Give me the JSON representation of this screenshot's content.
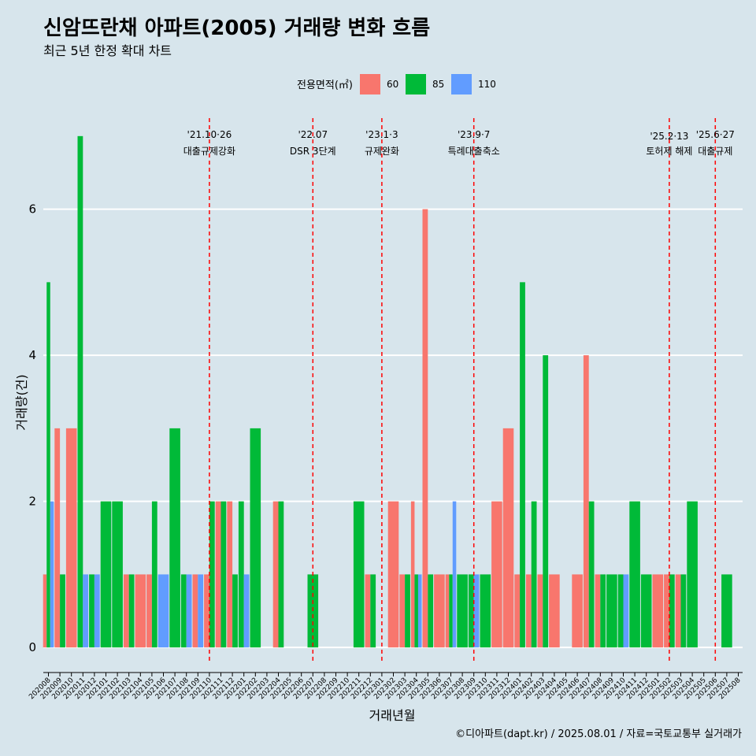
{
  "chart_data": {
    "type": "bar",
    "title": "신암뜨란채 아파트(2005) 거래량 변화 흐름",
    "subtitle": "최근 5년 한정 확대 차트",
    "xlabel": "거래년월",
    "ylabel": "거래량(건)",
    "caption": "©디아파트(dapt.kr) / 2025.08.01 / 자료=국토교통부 실거래가",
    "legend": {
      "title": "전용면적(㎡)",
      "position": "top",
      "entries": [
        {
          "label": "60",
          "color": "#F8766D"
        },
        {
          "label": "85",
          "color": "#00BA38"
        },
        {
          "label": "110",
          "color": "#619CFF"
        }
      ]
    },
    "ylim": [
      -0.3,
      7.3
    ],
    "yticks": [
      0,
      2,
      4,
      6
    ],
    "grid": true,
    "categories": [
      "202008",
      "202009",
      "202010",
      "202011",
      "202012",
      "202101",
      "202102",
      "202103",
      "202104",
      "202105",
      "202106",
      "202107",
      "202108",
      "202109",
      "202110",
      "202111",
      "202112",
      "202201",
      "202202",
      "202203",
      "202204",
      "202205",
      "202206",
      "202207",
      "202208",
      "202209",
      "202210",
      "202211",
      "202212",
      "202301",
      "202302",
      "202303",
      "202304",
      "202305",
      "202306",
      "202307",
      "202308",
      "202309",
      "202310",
      "202311",
      "202312",
      "202401",
      "202402",
      "202403",
      "202404",
      "202405",
      "202406",
      "202407",
      "202408",
      "202409",
      "202410",
      "202411",
      "202412",
      "202501",
      "202502",
      "202503",
      "202504",
      "202505",
      "202506",
      "202507",
      "202508"
    ],
    "series": [
      {
        "name": "60",
        "color": "#F8766D",
        "values": [
          1,
          3,
          3,
          0,
          0,
          0,
          0,
          1,
          1,
          1,
          0,
          0,
          0,
          1,
          1,
          2,
          2,
          0,
          0,
          0,
          2,
          0,
          0,
          0,
          0,
          0,
          0,
          0,
          1,
          0,
          2,
          1,
          2,
          6,
          1,
          1,
          0,
          0,
          0,
          2,
          3,
          1,
          1,
          1,
          1,
          0,
          1,
          4,
          1,
          0,
          0,
          0,
          0,
          1,
          1,
          1,
          0,
          0,
          0,
          0,
          0
        ]
      },
      {
        "name": "85",
        "color": "#00BA38",
        "values": [
          5,
          1,
          0,
          7,
          1,
          2,
          2,
          1,
          0,
          2,
          0,
          3,
          1,
          0,
          2,
          2,
          1,
          2,
          3,
          0,
          2,
          0,
          0,
          1,
          0,
          0,
          0,
          2,
          1,
          0,
          0,
          1,
          1,
          1,
          0,
          1,
          1,
          1,
          1,
          0,
          0,
          5,
          2,
          4,
          0,
          0,
          0,
          2,
          1,
          1,
          1,
          2,
          1,
          0,
          1,
          1,
          2,
          0,
          0,
          1,
          0
        ]
      },
      {
        "name": "110",
        "color": "#619CFF",
        "values": [
          2,
          0,
          0,
          1,
          1,
          0,
          0,
          0,
          0,
          0,
          1,
          0,
          1,
          1,
          0,
          0,
          0,
          1,
          0,
          0,
          0,
          0,
          0,
          0,
          0,
          0,
          0,
          0,
          0,
          0,
          0,
          0,
          1,
          0,
          0,
          2,
          0,
          1,
          0,
          0,
          0,
          0,
          0,
          0,
          0,
          0,
          0,
          0,
          0,
          0,
          1,
          0,
          0,
          0,
          0,
          0,
          0,
          0,
          0,
          0,
          0
        ]
      }
    ],
    "annotations": [
      {
        "x": "202110",
        "date": "'21.10·26",
        "text": "대출규제강화",
        "size": "normal"
      },
      {
        "x": "202207",
        "date": "'22.07",
        "text": "DSR 3단계",
        "size": "normal"
      },
      {
        "x": "202301",
        "date": "'23.1·3",
        "text": "규제완화",
        "size": "normal"
      },
      {
        "x": "202309",
        "date": "'23.9·7",
        "text": "특례대출축소",
        "size": "normal"
      },
      {
        "x": "202502",
        "date": "'25.2·13",
        "text": "토허제 해제",
        "size": "small"
      },
      {
        "x": "202506",
        "date": "'25.6·27",
        "text": "대출규제",
        "size": "normal"
      }
    ]
  }
}
